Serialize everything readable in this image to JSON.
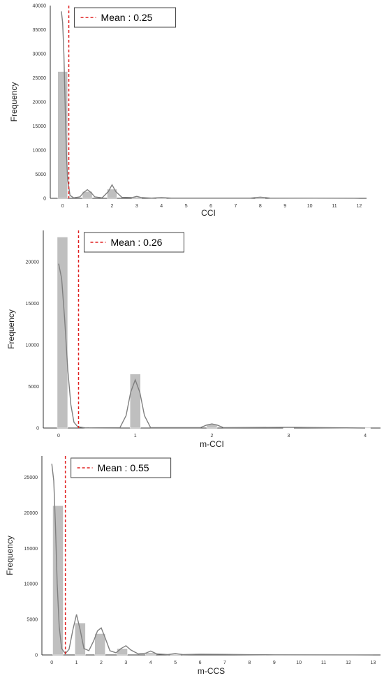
{
  "chart_data": [
    {
      "type": "bar",
      "title": "",
      "xlabel": "CCI",
      "ylabel": "Frequency",
      "xlim": [
        -0.5,
        12.3
      ],
      "ylim": [
        0,
        40000
      ],
      "x_ticks": [
        0,
        1,
        2,
        3,
        4,
        5,
        6,
        7,
        8,
        9,
        10,
        11,
        12
      ],
      "y_ticks": [
        0,
        5000,
        10000,
        15000,
        20000,
        25000,
        30000,
        35000,
        40000
      ],
      "bins": [
        {
          "x": 0,
          "count": 26300
        },
        {
          "x": 1,
          "count": 1400
        },
        {
          "x": 2,
          "count": 1900
        },
        {
          "x": 3,
          "count": 250
        },
        {
          "x": 4,
          "count": 80
        },
        {
          "x": 8,
          "count": 150
        }
      ],
      "kde": [
        [
          -0.05,
          38800
        ],
        [
          0,
          36500
        ],
        [
          0.05,
          30000
        ],
        [
          0.1,
          20000
        ],
        [
          0.15,
          10000
        ],
        [
          0.2,
          4000
        ],
        [
          0.3,
          600
        ],
        [
          0.45,
          100
        ],
        [
          0.7,
          300
        ],
        [
          0.85,
          1200
        ],
        [
          1,
          1800
        ],
        [
          1.15,
          1200
        ],
        [
          1.3,
          300
        ],
        [
          1.6,
          100
        ],
        [
          1.85,
          1400
        ],
        [
          2,
          2800
        ],
        [
          2.15,
          1400
        ],
        [
          2.4,
          200
        ],
        [
          2.8,
          150
        ],
        [
          3,
          400
        ],
        [
          3.2,
          150
        ],
        [
          3.6,
          50
        ],
        [
          4,
          150
        ],
        [
          4.4,
          50
        ],
        [
          7.6,
          50
        ],
        [
          8,
          250
        ],
        [
          8.4,
          50
        ],
        [
          12,
          0
        ]
      ],
      "mean": {
        "value": 0.25,
        "label": "Mean : 0.25"
      },
      "grid": false,
      "legend_position": "top-left"
    },
    {
      "type": "bar",
      "title": "",
      "xlabel": "m-CCI",
      "ylabel": "Frequency",
      "xlim": [
        -0.2,
        4.2
      ],
      "ylim": [
        0,
        23800
      ],
      "x_ticks": [
        0,
        1,
        2,
        3,
        4
      ],
      "y_ticks": [
        0,
        5000,
        10000,
        15000,
        20000
      ],
      "bins": [
        {
          "x": 0.05,
          "count": 23000
        },
        {
          "x": 1,
          "count": 6500
        },
        {
          "x": 2,
          "count": 450
        },
        {
          "x": 3,
          "count": 20
        },
        {
          "x": 4,
          "count": 5
        }
      ],
      "kde": [
        [
          0,
          19800
        ],
        [
          0.04,
          18000
        ],
        [
          0.08,
          13000
        ],
        [
          0.12,
          7000
        ],
        [
          0.16,
          2800
        ],
        [
          0.2,
          700
        ],
        [
          0.25,
          150
        ],
        [
          0.35,
          20
        ],
        [
          0.8,
          50
        ],
        [
          0.88,
          1500
        ],
        [
          0.94,
          4300
        ],
        [
          1,
          5800
        ],
        [
          1.06,
          4300
        ],
        [
          1.12,
          1500
        ],
        [
          1.2,
          50
        ],
        [
          1.85,
          50
        ],
        [
          1.93,
          350
        ],
        [
          2,
          500
        ],
        [
          2.07,
          350
        ],
        [
          2.15,
          50
        ],
        [
          3,
          80
        ],
        [
          4,
          0
        ]
      ],
      "mean": {
        "value": 0.26,
        "label": "Mean : 0.26"
      },
      "grid": false,
      "legend_position": "top-left"
    },
    {
      "type": "bar",
      "title": "",
      "xlabel": "m-CCS",
      "ylabel": "Frequency",
      "xlim": [
        -0.4,
        13.3
      ],
      "ylim": [
        0,
        28000
      ],
      "x_ticks": [
        0,
        1,
        2,
        3,
        4,
        5,
        6,
        7,
        8,
        9,
        10,
        11,
        12,
        13
      ],
      "y_ticks": [
        0,
        5000,
        10000,
        15000,
        20000,
        25000
      ],
      "bins": [
        {
          "x": 0.25,
          "count": 21000
        },
        {
          "x": 1.15,
          "count": 4500
        },
        {
          "x": 1.95,
          "count": 3000
        },
        {
          "x": 2.85,
          "count": 900
        },
        {
          "x": 4,
          "count": 300
        },
        {
          "x": 5,
          "count": 100
        }
      ],
      "kde": [
        [
          0,
          26900
        ],
        [
          0.08,
          24500
        ],
        [
          0.15,
          18000
        ],
        [
          0.22,
          10000
        ],
        [
          0.3,
          4000
        ],
        [
          0.4,
          900
        ],
        [
          0.55,
          200
        ],
        [
          0.7,
          800
        ],
        [
          0.85,
          3500
        ],
        [
          1,
          5700
        ],
        [
          1.15,
          3500
        ],
        [
          1.3,
          900
        ],
        [
          1.5,
          600
        ],
        [
          1.7,
          2000
        ],
        [
          1.85,
          3400
        ],
        [
          2,
          3800
        ],
        [
          2.15,
          2500
        ],
        [
          2.35,
          600
        ],
        [
          2.6,
          300
        ],
        [
          2.8,
          900
        ],
        [
          3,
          1300
        ],
        [
          3.2,
          700
        ],
        [
          3.5,
          150
        ],
        [
          3.8,
          250
        ],
        [
          4,
          550
        ],
        [
          4.25,
          150
        ],
        [
          4.7,
          50
        ],
        [
          5,
          200
        ],
        [
          5.3,
          50
        ],
        [
          6,
          100
        ],
        [
          7,
          80
        ],
        [
          8,
          40
        ],
        [
          9,
          20
        ],
        [
          13,
          0
        ]
      ],
      "mean": {
        "value": 0.55,
        "label": "Mean : 0.55"
      },
      "grid": false,
      "legend_position": "top-left"
    }
  ]
}
